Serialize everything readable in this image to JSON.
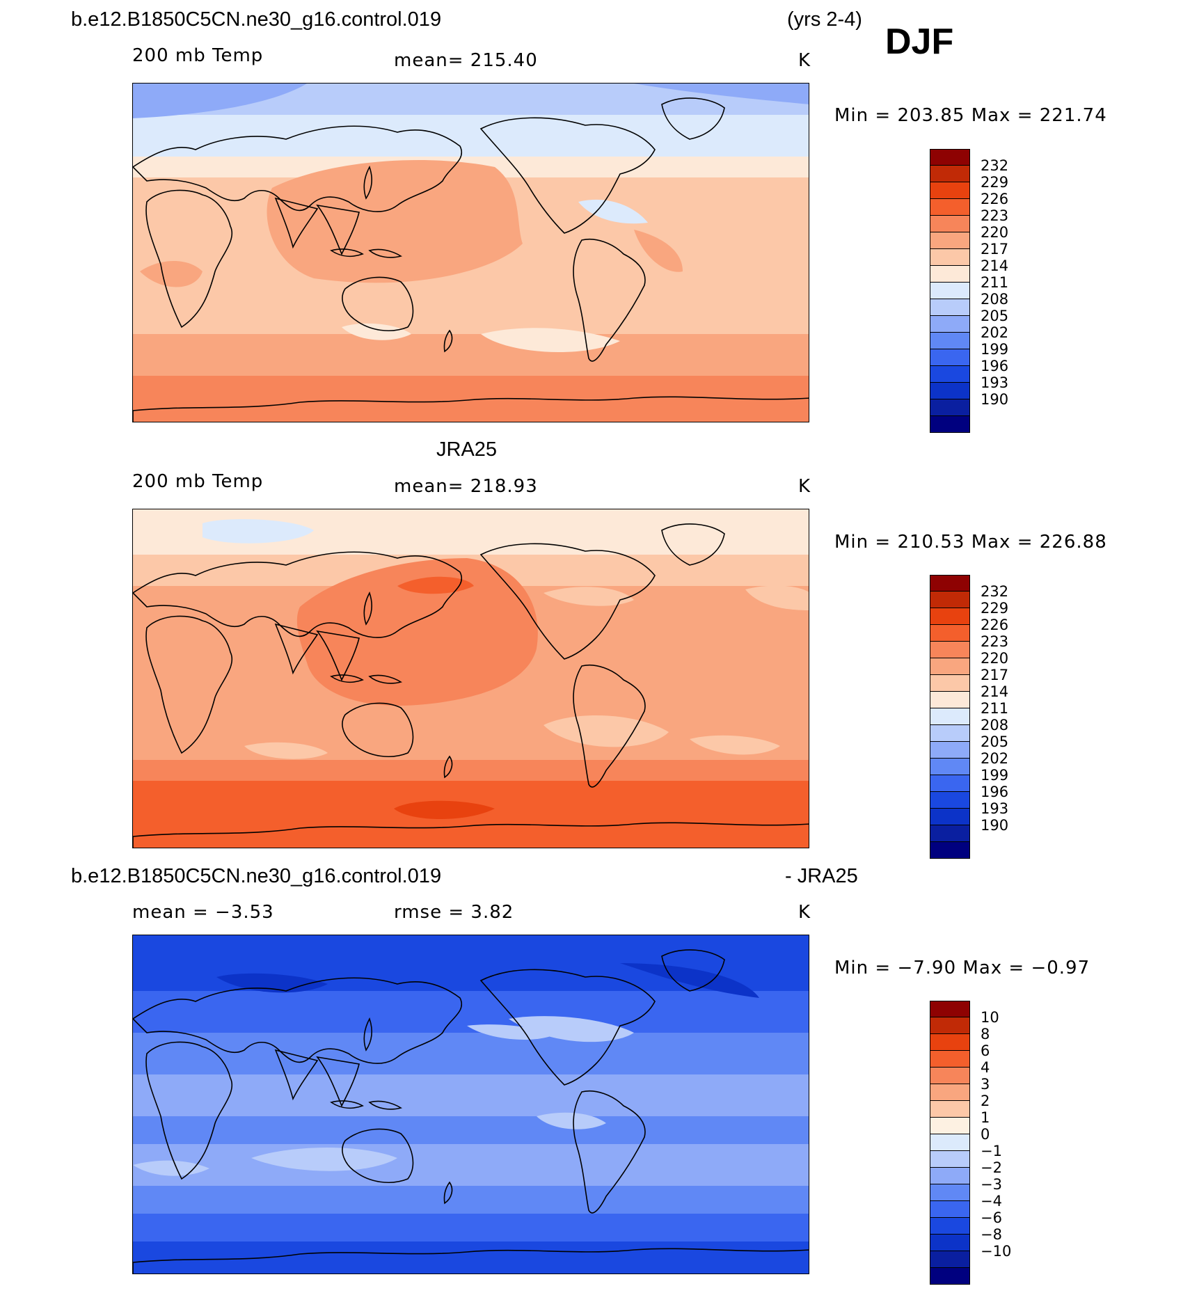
{
  "header": {
    "case_name": "b.e12.B1850C5CN.ne30_g16.control.019",
    "years": "(yrs 2-4)",
    "season": "DJF"
  },
  "panels": [
    {
      "id": "model",
      "variable": "200 mb Temp",
      "stat": "mean=  215.40",
      "units": "K",
      "minmax": "Min  =  203.85  Max  =  221.74",
      "colorbar_labels": [
        "232",
        "229",
        "226",
        "223",
        "220",
        "217",
        "214",
        "211",
        "208",
        "205",
        "202",
        "199",
        "196",
        "193",
        "190"
      ]
    },
    {
      "id": "obs",
      "title": "JRA25",
      "variable": "200 mb Temp",
      "stat": "mean=  218.93",
      "units": "K",
      "minmax": "Min  =  210.53  Max  =  226.88",
      "colorbar_labels": [
        "232",
        "229",
        "226",
        "223",
        "220",
        "217",
        "214",
        "211",
        "208",
        "205",
        "202",
        "199",
        "196",
        "193",
        "190"
      ]
    },
    {
      "id": "diff",
      "title_left": "b.e12.B1850C5CN.ne30_g16.control.019",
      "title_right": "- JRA25",
      "stat_mean": "mean  =    −3.53",
      "stat_rmse": "rmse  =     3.82",
      "units": "K",
      "minmax": "Min  =    −7.90  Max  =    −0.97",
      "colorbar_labels": [
        "10",
        "8",
        "6",
        "4",
        "3",
        "2",
        "1",
        "0",
        "−1",
        "−2",
        "−3",
        "−4",
        "−6",
        "−8",
        "−10"
      ]
    }
  ],
  "colors": {
    "abs_scale": [
      "#00007f",
      "#0a1fa0",
      "#0c33c8",
      "#1a48e0",
      "#3a66f0",
      "#6088f5",
      "#8eaaf8",
      "#b8ccfa",
      "#dceafc",
      "#fde9d8",
      "#fcc8a8",
      "#f9a67f",
      "#f7855a",
      "#f45f2c",
      "#e8420f",
      "#c12a06",
      "#8e0202"
    ],
    "diff_scale": [
      "#00007f",
      "#0a1fa0",
      "#0c33c8",
      "#1a48e0",
      "#3a66f0",
      "#6088f5",
      "#8eaaf8",
      "#b8ccfa",
      "#dceafc",
      "#fdf1e2",
      "#fcc8a8",
      "#f9a67f",
      "#f7855a",
      "#f45f2c",
      "#e8420f",
      "#c12a06",
      "#8e0202"
    ]
  },
  "chart_data": [
    {
      "type": "heatmap",
      "title": "b.e12.B1850C5CN.ne30_g16.control.019  200 mb Temp  DJF (yrs 2-4)",
      "units": "K",
      "mean": 215.4,
      "min": 203.85,
      "max": 221.74,
      "contour_levels": [
        190,
        193,
        196,
        199,
        202,
        205,
        208,
        211,
        214,
        217,
        220,
        223,
        226,
        229,
        232
      ],
      "dominant_bands": [
        {
          "region": "Arctic / high northern latitudes",
          "range": "205-211"
        },
        {
          "region": "northern mid-latitudes",
          "range": "211-214"
        },
        {
          "region": "tropical western/central Pacific",
          "range": "217-220"
        },
        {
          "region": "southern mid-latitudes",
          "range": "214-217"
        },
        {
          "region": "Antarctic",
          "range": "217-220"
        }
      ]
    },
    {
      "type": "heatmap",
      "title": "JRA25  200 mb Temp",
      "units": "K",
      "mean": 218.93,
      "min": 210.53,
      "max": 226.88,
      "contour_levels": [
        190,
        193,
        196,
        199,
        202,
        205,
        208,
        211,
        214,
        217,
        220,
        223,
        226,
        229,
        232
      ],
      "dominant_bands": [
        {
          "region": "Arctic / Greenland",
          "range": "208-214"
        },
        {
          "region": "North Pacific",
          "range": "220-226"
        },
        {
          "region": "tropics",
          "range": "217-220"
        },
        {
          "region": "Southern Ocean / Antarctic",
          "range": "223-229"
        }
      ]
    },
    {
      "type": "heatmap",
      "title": "b.e12.B1850C5CN.ne30_g16.control.019 - JRA25",
      "units": "K",
      "mean": -3.53,
      "rmse": 3.82,
      "min": -7.9,
      "max": -0.97,
      "contour_levels": [
        -10,
        -8,
        -6,
        -4,
        -3,
        -2,
        -1,
        0,
        1,
        2,
        3,
        4,
        6,
        8,
        10
      ],
      "dominant_bands": [
        {
          "region": "high latitudes (both hemispheres)",
          "range": "-6 to -4"
        },
        {
          "region": "mid-latitudes",
          "range": "-4 to -3"
        },
        {
          "region": "tropics",
          "range": "-3 to -1"
        }
      ]
    }
  ]
}
